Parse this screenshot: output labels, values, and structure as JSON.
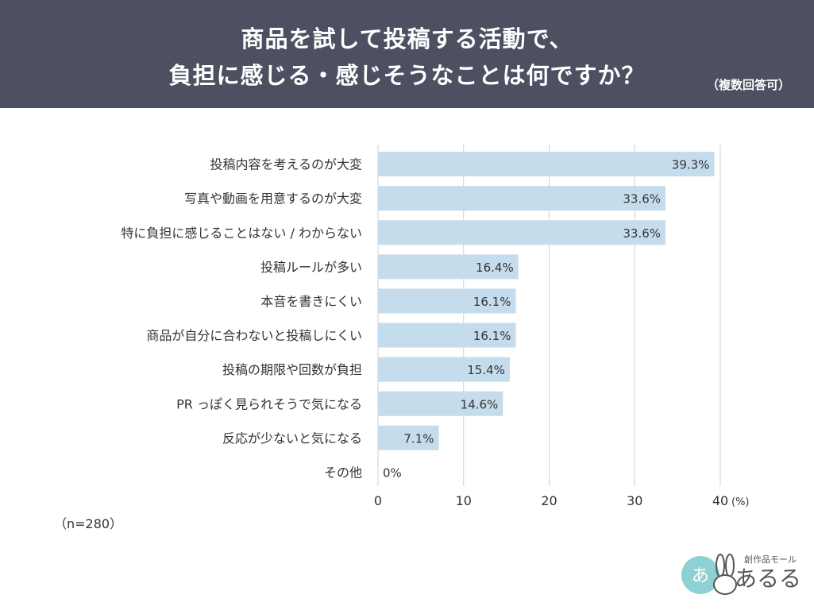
{
  "header": {
    "title_line1": "商品を試して投稿する活動で、",
    "title_line2": "負担に感じる・感じそうなことは何ですか？",
    "note": "（複数回答可）"
  },
  "sample_size": "（n=280）",
  "colors": {
    "header_bg": "#4c5060",
    "bar": "#c5dced",
    "grid": "#d0d0d0",
    "text": "#3a3a3a"
  },
  "chart_data": {
    "type": "bar",
    "orientation": "horizontal",
    "categories": [
      "投稿内容を考えるのが大変",
      "写真や動画を用意するのが大変",
      "特に負担に感じることはない / わからない",
      "投稿ルールが多い",
      "本音を書きにくい",
      "商品が自分に合わないと投稿しにくい",
      "投稿の期限や回数が負担",
      "PR っぽく見られそうで気になる",
      "反応が少ないと気になる",
      "その他"
    ],
    "values": [
      39.3,
      33.6,
      33.6,
      16.4,
      16.1,
      16.1,
      15.4,
      14.6,
      7.1,
      0
    ],
    "value_labels": [
      "39.3%",
      "33.6%",
      "33.6%",
      "16.4%",
      "16.1%",
      "16.1%",
      "15.4%",
      "14.6%",
      "7.1%",
      "0%"
    ],
    "xlim": [
      0,
      40
    ],
    "xticks": [
      "0",
      "10",
      "20",
      "30",
      "40"
    ],
    "unit_label": "(%)",
    "grid": true
  },
  "logo": {
    "text": "あるる",
    "subtitle": "創作品モール"
  }
}
